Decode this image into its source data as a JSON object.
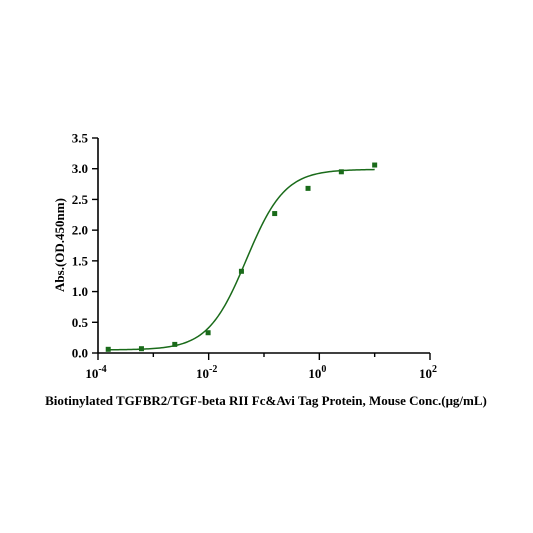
{
  "chart_data": {
    "type": "scatter",
    "title": "",
    "xlabel": "Biotinylated TGFBR2/TGF-beta RII Fc&Avi Tag Protein, Mouse Conc.(μg/mL)",
    "ylabel": "Abs.(OD.450nm)",
    "x_scale": "log10",
    "xlim": [
      0.0001,
      100
    ],
    "ylim": [
      0,
      3.5
    ],
    "x_ticks": [
      {
        "value": 0.0001,
        "base": "10",
        "exp": "-4"
      },
      {
        "value": 0.01,
        "base": "10",
        "exp": "-2"
      },
      {
        "value": 1,
        "base": "10",
        "exp": "0"
      },
      {
        "value": 100,
        "base": "10",
        "exp": "2"
      }
    ],
    "y_ticks": [
      "0.0",
      "0.5",
      "1.0",
      "1.5",
      "2.0",
      "2.5",
      "3.0",
      "3.5"
    ],
    "series": [
      {
        "color": "#1a6b1a",
        "marker": "square",
        "x": [
          0.000153,
          0.00061,
          0.00244,
          0.00977,
          0.0391,
          0.156,
          0.625,
          2.5,
          10
        ],
        "y": [
          0.06,
          0.07,
          0.14,
          0.33,
          1.33,
          2.27,
          2.68,
          2.95,
          3.06
        ]
      }
    ],
    "fit_curve": {
      "model": "4PL",
      "bottom": 0.05,
      "top": 2.99,
      "ec50": 0.048,
      "hill": 1.25,
      "x_range": [
        0.000153,
        10
      ],
      "color": "#1a6b1a"
    },
    "grid": false,
    "legend": "none"
  }
}
